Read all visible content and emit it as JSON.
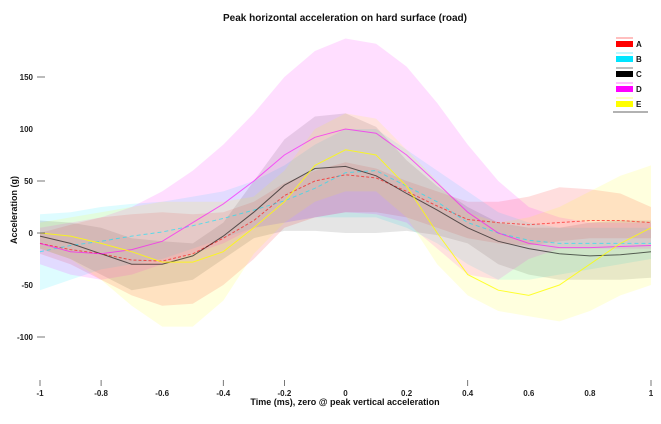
{
  "chart_data": {
    "type": "line",
    "title": "Peak horizontal acceleration on hard surface (road)",
    "xlabel": "Time (ms), zero @ peak vertical acceleration",
    "ylabel": "Acceleration (g)",
    "xlim": [
      -1,
      1
    ],
    "ylim": [
      -140,
      190
    ],
    "grid": false,
    "legend_position": "top-right",
    "x_ticks": [
      -1,
      -0.8,
      -0.6,
      -0.4,
      -0.2,
      0,
      0.2,
      0.4,
      0.6,
      0.8,
      1
    ],
    "x_tick_labels": [
      "-1",
      "-0.8",
      "-0.6",
      "-0.4",
      "-0.2",
      "0",
      "0.2",
      "0.4",
      "0.6",
      "0.8",
      "1"
    ],
    "y_ticks": [
      150,
      100,
      50,
      0,
      -50,
      -100
    ],
    "y_tick_labels": [
      "150",
      "100",
      "50",
      "0",
      "-50",
      "-100"
    ],
    "x": [
      -1,
      -0.9,
      -0.8,
      -0.7,
      -0.6,
      -0.5,
      -0.4,
      -0.3,
      -0.2,
      -0.1,
      0,
      0.1,
      0.2,
      0.3,
      0.4,
      0.5,
      0.6,
      0.7,
      0.8,
      0.9,
      1
    ],
    "series": [
      {
        "name": "A",
        "color": "#ff0000",
        "dash": "3,2",
        "values": [
          -10,
          -16,
          -20,
          -26,
          -27,
          -20,
          -5,
          12,
          36,
          50,
          56,
          53,
          40,
          26,
          13,
          10,
          8,
          10,
          12,
          12,
          10
        ],
        "lower": [
          -20,
          -30,
          -45,
          -60,
          -70,
          -68,
          -50,
          -25,
          5,
          15,
          20,
          20,
          15,
          5,
          -5,
          -10,
          -12,
          -8,
          -5,
          -5,
          -5
        ],
        "upper": [
          0,
          8,
          15,
          18,
          20,
          18,
          20,
          30,
          48,
          60,
          68,
          62,
          50,
          40,
          30,
          30,
          35,
          44,
          42,
          38,
          25
        ]
      },
      {
        "name": "B",
        "color": "#00e5ff",
        "dash": "4,3",
        "values": [
          -18,
          -12,
          -8,
          -3,
          1,
          7,
          14,
          22,
          31,
          43,
          58,
          60,
          45,
          30,
          10,
          0,
          -7,
          -10,
          -10,
          -10,
          -10
        ],
        "lower": [
          -55,
          -45,
          -35,
          -30,
          -25,
          -15,
          -5,
          5,
          10,
          15,
          15,
          15,
          5,
          -10,
          -30,
          -45,
          -45,
          -40,
          -35,
          -30,
          -25
        ],
        "upper": [
          18,
          20,
          25,
          28,
          30,
          35,
          40,
          50,
          65,
          85,
          100,
          100,
          80,
          60,
          40,
          20,
          10,
          5,
          5,
          5,
          5
        ]
      },
      {
        "name": "C",
        "color": "#000000",
        "dash": "",
        "values": [
          -3,
          -10,
          -20,
          -30,
          -30,
          -22,
          -3,
          20,
          46,
          62,
          64,
          55,
          38,
          22,
          5,
          -8,
          -15,
          -20,
          -22,
          -21,
          -18
        ],
        "lower": [
          -15,
          -25,
          -40,
          -55,
          -50,
          -45,
          -25,
          -5,
          2,
          2,
          0,
          0,
          2,
          -2,
          -10,
          -30,
          -40,
          -45,
          -45,
          -45,
          -43
        ],
        "upper": [
          12,
          10,
          5,
          -5,
          -8,
          -10,
          10,
          50,
          90,
          112,
          115,
          102,
          70,
          45,
          25,
          10,
          5,
          5,
          10,
          12,
          12
        ]
      },
      {
        "name": "D",
        "color": "#ff00ff",
        "dash": "",
        "values": [
          -10,
          -18,
          -20,
          -16,
          -8,
          10,
          28,
          50,
          75,
          92,
          100,
          96,
          75,
          48,
          20,
          0,
          -10,
          -14,
          -14,
          -13,
          -12
        ],
        "lower": [
          -30,
          -40,
          -45,
          -40,
          -30,
          -20,
          -10,
          5,
          10,
          15,
          20,
          18,
          10,
          -15,
          -40,
          -45,
          -25,
          -15,
          -15,
          -15,
          -15
        ],
        "upper": [
          5,
          10,
          15,
          25,
          40,
          60,
          85,
          115,
          150,
          175,
          187,
          182,
          160,
          125,
          85,
          50,
          25,
          15,
          10,
          10,
          10
        ]
      },
      {
        "name": "E",
        "color": "#ffff00",
        "dash": "",
        "values": [
          0,
          -3,
          -10,
          -18,
          -28,
          -28,
          -18,
          5,
          30,
          65,
          80,
          75,
          45,
          0,
          -40,
          -55,
          -60,
          -50,
          -30,
          -10,
          5
        ],
        "lower": [
          -15,
          -25,
          -45,
          -70,
          -90,
          -90,
          -65,
          -20,
          10,
          30,
          40,
          40,
          15,
          -30,
          -60,
          -75,
          -80,
          -85,
          -75,
          -60,
          -50
        ],
        "upper": [
          10,
          15,
          20,
          25,
          30,
          30,
          30,
          35,
          60,
          100,
          115,
          110,
          80,
          50,
          20,
          10,
          15,
          25,
          40,
          55,
          65
        ]
      }
    ]
  }
}
